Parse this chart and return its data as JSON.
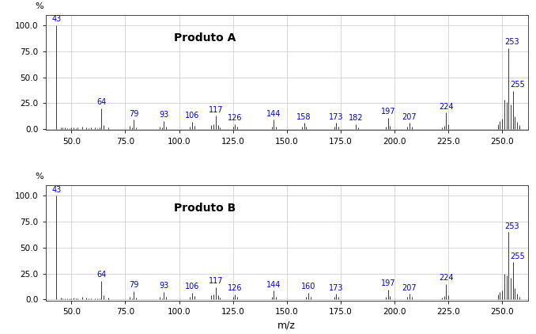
{
  "panel_A": {
    "label": "Produto A",
    "peaks": [
      [
        43,
        100
      ],
      [
        45,
        2
      ],
      [
        46,
        1.5
      ],
      [
        47,
        1.5
      ],
      [
        48,
        1
      ],
      [
        49,
        1
      ],
      [
        50,
        1.5
      ],
      [
        51,
        2
      ],
      [
        52,
        1
      ],
      [
        53,
        1.5
      ],
      [
        55,
        2.5
      ],
      [
        57,
        2
      ],
      [
        58,
        1
      ],
      [
        59,
        1.5
      ],
      [
        61,
        1.5
      ],
      [
        62,
        1
      ],
      [
        63,
        1.5
      ],
      [
        64,
        20
      ],
      [
        65,
        4
      ],
      [
        67,
        2
      ],
      [
        77,
        3
      ],
      [
        78,
        1.5
      ],
      [
        79,
        9
      ],
      [
        80,
        2
      ],
      [
        91,
        2.5
      ],
      [
        92,
        1.5
      ],
      [
        93,
        8
      ],
      [
        94,
        2.5
      ],
      [
        105,
        2.5
      ],
      [
        106,
        7
      ],
      [
        107,
        3.5
      ],
      [
        115,
        4
      ],
      [
        116,
        5
      ],
      [
        117,
        13
      ],
      [
        118,
        4
      ],
      [
        119,
        2
      ],
      [
        125,
        2.5
      ],
      [
        126,
        5
      ],
      [
        127,
        2.5
      ],
      [
        143,
        2.5
      ],
      [
        144,
        9
      ],
      [
        145,
        2.5
      ],
      [
        157,
        2.5
      ],
      [
        158,
        6
      ],
      [
        159,
        2.5
      ],
      [
        172,
        2.5
      ],
      [
        173,
        6
      ],
      [
        174,
        2.5
      ],
      [
        182,
        5
      ],
      [
        183,
        2
      ],
      [
        196,
        2.5
      ],
      [
        197,
        11
      ],
      [
        198,
        3.5
      ],
      [
        206,
        2.5
      ],
      [
        207,
        6
      ],
      [
        208,
        2.5
      ],
      [
        222,
        2
      ],
      [
        223,
        3.5
      ],
      [
        224,
        16
      ],
      [
        225,
        4.5
      ],
      [
        248,
        5
      ],
      [
        249,
        8
      ],
      [
        250,
        10
      ],
      [
        251,
        28
      ],
      [
        252,
        26
      ],
      [
        253,
        78
      ],
      [
        254,
        24
      ],
      [
        255,
        37
      ],
      [
        256,
        12
      ],
      [
        257,
        7
      ],
      [
        258,
        4
      ]
    ],
    "labeled_peaks": {
      "43": 100,
      "64": 20,
      "79": 9,
      "93": 8,
      "106": 7,
      "117": 13,
      "126": 5,
      "144": 9,
      "158": 6,
      "173": 6,
      "182": 5,
      "197": 11,
      "207": 6,
      "224": 16,
      "253": 78,
      "255": 37
    }
  },
  "panel_B": {
    "label": "Produto B",
    "peaks": [
      [
        43,
        100
      ],
      [
        45,
        2
      ],
      [
        46,
        1.5
      ],
      [
        47,
        1.5
      ],
      [
        48,
        1
      ],
      [
        49,
        1
      ],
      [
        50,
        1.5
      ],
      [
        51,
        2
      ],
      [
        52,
        1
      ],
      [
        53,
        1.5
      ],
      [
        55,
        2.5
      ],
      [
        57,
        2
      ],
      [
        58,
        1
      ],
      [
        59,
        1.5
      ],
      [
        61,
        1.5
      ],
      [
        62,
        1
      ],
      [
        63,
        1.5
      ],
      [
        64,
        18
      ],
      [
        65,
        4
      ],
      [
        67,
        2
      ],
      [
        77,
        3
      ],
      [
        78,
        1.5
      ],
      [
        79,
        8
      ],
      [
        80,
        2
      ],
      [
        91,
        2.5
      ],
      [
        92,
        1.5
      ],
      [
        93,
        7.5
      ],
      [
        94,
        2.5
      ],
      [
        105,
        2.5
      ],
      [
        106,
        6.5
      ],
      [
        107,
        3.5
      ],
      [
        115,
        4
      ],
      [
        116,
        5
      ],
      [
        117,
        12
      ],
      [
        118,
        4
      ],
      [
        119,
        2
      ],
      [
        125,
        2.5
      ],
      [
        126,
        5
      ],
      [
        127,
        2.5
      ],
      [
        143,
        2.5
      ],
      [
        144,
        8.5
      ],
      [
        145,
        2.5
      ],
      [
        159,
        2.5
      ],
      [
        160,
        6.5
      ],
      [
        161,
        2.5
      ],
      [
        172,
        2.5
      ],
      [
        173,
        5.5
      ],
      [
        174,
        2.5
      ],
      [
        196,
        2.5
      ],
      [
        197,
        9.5
      ],
      [
        198,
        3.5
      ],
      [
        206,
        2.5
      ],
      [
        207,
        5.5
      ],
      [
        208,
        2.5
      ],
      [
        222,
        2
      ],
      [
        223,
        3.5
      ],
      [
        224,
        15
      ],
      [
        225,
        4.5
      ],
      [
        248,
        5
      ],
      [
        249,
        7
      ],
      [
        250,
        9
      ],
      [
        251,
        25
      ],
      [
        252,
        23
      ],
      [
        253,
        65
      ],
      [
        254,
        21
      ],
      [
        255,
        36
      ],
      [
        256,
        11
      ],
      [
        257,
        6
      ],
      [
        258,
        3
      ]
    ],
    "labeled_peaks": {
      "43": 100,
      "64": 18,
      "79": 8,
      "93": 7.5,
      "106": 6.5,
      "117": 12,
      "126": 5,
      "144": 8.5,
      "160": 6.5,
      "173": 5.5,
      "197": 9.5,
      "207": 5.5,
      "224": 15,
      "253": 65,
      "255": 36
    }
  },
  "xlim": [
    38,
    262
  ],
  "ylim": [
    -1,
    110
  ],
  "xticks": [
    50.0,
    75.0,
    100.0,
    125.0,
    150.0,
    175.0,
    200.0,
    225.0,
    250.0
  ],
  "xlabel": "m/z",
  "percent_label": "%",
  "yticks": [
    0.0,
    25.0,
    50.0,
    75.0,
    100.0
  ],
  "peak_color": "#2a2a2a",
  "label_color": "#0000cc",
  "bg_color": "#ffffff",
  "grid_color": "#c8c8c8",
  "label_fontsize": 7,
  "title_fontsize": 10,
  "tick_fontsize": 7.5,
  "xlabel_fontsize": 9,
  "percent_fontsize": 8
}
